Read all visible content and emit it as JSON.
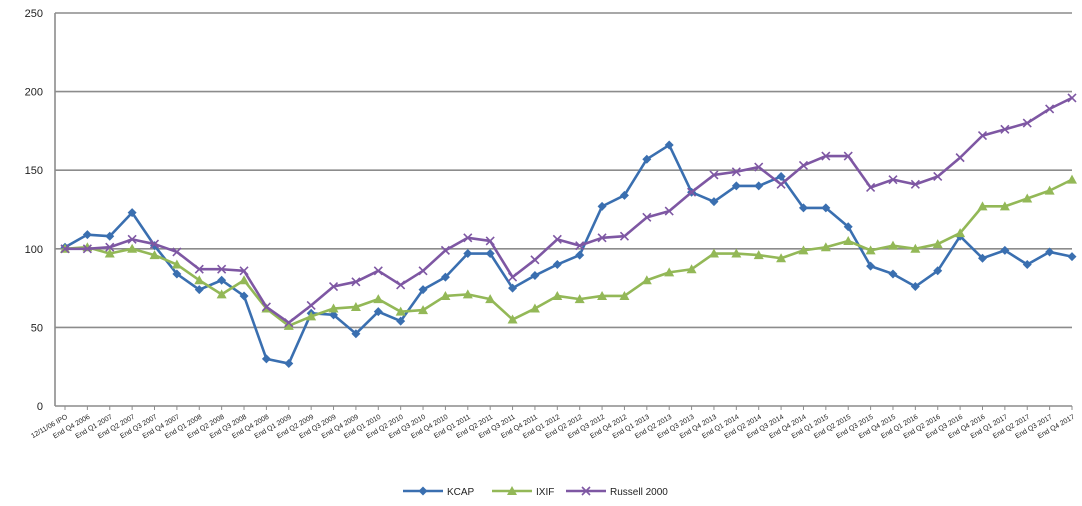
{
  "chart_data": {
    "type": "line",
    "title": "",
    "xlabel": "",
    "ylabel": "",
    "ylim": [
      0,
      250
    ],
    "yticks": [
      0,
      50,
      100,
      150,
      200,
      250
    ],
    "grid": "horizontal",
    "legend_position": "bottom",
    "categories": [
      "12/11/06 IPO",
      "End Q4 2006",
      "End Q1 2007",
      "End Q2 2007",
      "End Q3 2007",
      "End Q4 2007",
      "End Q1 2008",
      "End Q2 2008",
      "End Q3 2008",
      "End Q4 2008",
      "End Q1 2009",
      "End Q2 2009",
      "End Q3 2009",
      "End Q4 2009",
      "End Q1 2010",
      "End Q2 2010",
      "End Q3 2010",
      "End Q4 2010",
      "End Q1 2011",
      "End Q2 2011",
      "End Q3 2011",
      "End Q4 2011",
      "End Q1 2012",
      "End Q2 2012",
      "End Q3 2012",
      "End Q4 2012",
      "End Q1 2013",
      "End Q2 2013",
      "End Q3 2013",
      "End Q4 2013",
      "End Q1 2014",
      "End Q2 2014",
      "End Q3 2014",
      "End Q4 2014",
      "End Q1 2015",
      "End Q2 2015",
      "End Q3 2015",
      "End Q4 2015",
      "End Q1 2016",
      "End Q2 2016",
      "End Q3 2016",
      "End Q4 2016",
      "End Q1 2017",
      "End Q2 2017",
      "End Q3 2017",
      "End Q4 2017"
    ],
    "series": [
      {
        "name": "KCAP",
        "color": "#3a6fb0",
        "marker": "diamond",
        "values": [
          101,
          109,
          108,
          123,
          102,
          84,
          74,
          80,
          70,
          30,
          27,
          59,
          58,
          46,
          60,
          54,
          74,
          82,
          97,
          97,
          75,
          83,
          90,
          96,
          127,
          134,
          157,
          166,
          136,
          130,
          140,
          140,
          146,
          126,
          126,
          114,
          89,
          84,
          76,
          86,
          108,
          94,
          99,
          90,
          98,
          95
        ]
      },
      {
        "name": "IXIF",
        "color": "#93b857",
        "marker": "triangle",
        "values": [
          100,
          101,
          97,
          100,
          96,
          90,
          80,
          71,
          80,
          62,
          51,
          57,
          62,
          63,
          68,
          60,
          61,
          70,
          71,
          68,
          55,
          62,
          70,
          68,
          70,
          70,
          80,
          85,
          87,
          97,
          97,
          96,
          94,
          99,
          101,
          105,
          99,
          102,
          100,
          103,
          110,
          127,
          127,
          132,
          137,
          144
        ]
      },
      {
        "name": "Russell 2000",
        "color": "#7e57a3",
        "marker": "x",
        "values": [
          100,
          100,
          101,
          106,
          103,
          98,
          87,
          87,
          86,
          63,
          53,
          64,
          76,
          79,
          86,
          77,
          86,
          99,
          107,
          105,
          82,
          93,
          106,
          102,
          107,
          108,
          120,
          124,
          136,
          147,
          149,
          152,
          141,
          153,
          159,
          159,
          139,
          144,
          141,
          146,
          158,
          172,
          176,
          180,
          189,
          196
        ]
      }
    ]
  }
}
